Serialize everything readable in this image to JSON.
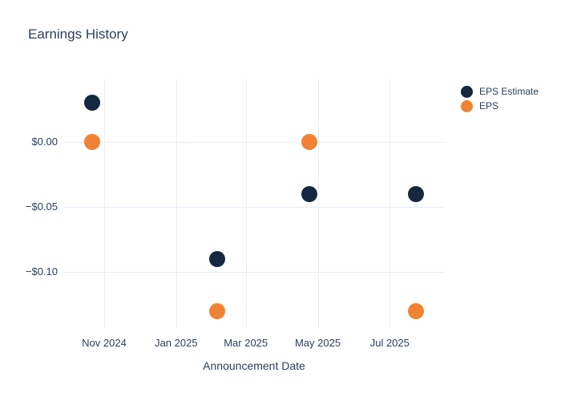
{
  "chart_data": {
    "type": "scatter",
    "title": "Earnings History",
    "xlabel": "Announcement Date",
    "ylabel": "",
    "grid": true,
    "legend_position": "outside-top-right",
    "background_color": "#ffffff",
    "grid_color": "#E8EDF5",
    "text_color": "#2A3F5F",
    "marker_size_px": 20,
    "x": [
      "2024-10-22",
      "2025-02-05",
      "2025-04-24",
      "2025-07-23"
    ],
    "series": [
      {
        "name": "EPS Estimate",
        "color": "#142940",
        "values": [
          0.03,
          -0.09,
          -0.04,
          -0.04
        ]
      },
      {
        "name": "EPS",
        "color": "#F08234",
        "values": [
          0.0,
          -0.13,
          0.0,
          -0.13
        ]
      }
    ],
    "x_ticks": [
      {
        "label": "Nov 2024",
        "date": "2024-11-01"
      },
      {
        "label": "Jan 2025",
        "date": "2025-01-01"
      },
      {
        "label": "Mar 2025",
        "date": "2025-03-01"
      },
      {
        "label": "May 2025",
        "date": "2025-05-01"
      },
      {
        "label": "Jul 2025",
        "date": "2025-07-01"
      }
    ],
    "y_ticks": [
      {
        "label": "$0.00",
        "value": 0.0
      },
      {
        "label": "−$0.05",
        "value": -0.05
      },
      {
        "label": "−$0.10",
        "value": -0.1
      }
    ],
    "xlim": [
      "2024-09-28",
      "2025-08-16"
    ],
    "ylim": [
      -0.1427,
      0.0476
    ]
  }
}
